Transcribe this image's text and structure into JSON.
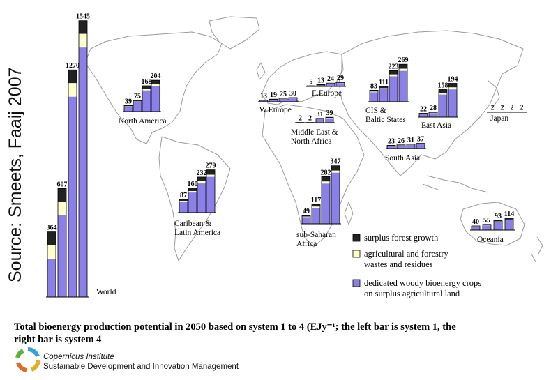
{
  "source_label": "Source: Smeets, Faaij 2007",
  "caption": {
    "line1": "Total bioenergy production potential in 2050 based on system 1 to 4 (EJy⁻¹; the left bar is system 1, the",
    "line2": "right bar is system 4"
  },
  "logo": {
    "institute": "Copernicus Institute",
    "department": "Sustainable Development and Innovation Management"
  },
  "colors": {
    "surplus_forest": "#222222",
    "residues": "#ffffcc",
    "dedicated_crops": "#8a80e8",
    "map_line": "#9a9a9a"
  },
  "chart_data": {
    "type": "bar",
    "unit": "EJ/yr",
    "series_order": [
      "System 1",
      "System 2",
      "System 3",
      "System 4"
    ],
    "legend": [
      {
        "key": "surplus_forest",
        "label": "surplus forest growth"
      },
      {
        "key": "residues",
        "label": "agricultural and forestry wastes and residues"
      },
      {
        "key": "dedicated_crops",
        "label": "dedicated woody bioenergy crops on surplus agricultural land"
      }
    ],
    "regions": [
      {
        "name": "World",
        "label_lines": [
          "World"
        ],
        "values": [
          364,
          607,
          1270,
          1545
        ],
        "components": {
          "surplus_forest": [
            74,
            74,
            74,
            74
          ],
          "residues": [
            76,
            76,
            76,
            76
          ],
          "dedicated_crops": [
            214,
            457,
            1120,
            1395
          ]
        }
      },
      {
        "name": "North America",
        "label_lines": [
          "North America"
        ],
        "values": [
          39,
          75,
          168,
          204
        ]
      },
      {
        "name": "Caribean & Latin America",
        "label_lines": [
          "Caribean &",
          "Latin America"
        ],
        "values": [
          87,
          160,
          232,
          279
        ]
      },
      {
        "name": "W.Europe",
        "label_lines": [
          "W.Europe"
        ],
        "values": [
          13,
          19,
          25,
          30
        ]
      },
      {
        "name": "E.Europe",
        "label_lines": [
          "E.Europe"
        ],
        "values": [
          5,
          13,
          24,
          29
        ]
      },
      {
        "name": "CIS & Baltic States",
        "label_lines": [
          "CIS &",
          "Baltic States"
        ],
        "values": [
          83,
          111,
          223,
          269
        ]
      },
      {
        "name": "Middle East & North Africa",
        "label_lines": [
          "Middle East &",
          "North Africa"
        ],
        "values": [
          2,
          2,
          31,
          39
        ]
      },
      {
        "name": "sub-Saharan Africa",
        "label_lines": [
          "sub-Saharan",
          "Africa"
        ],
        "values": [
          49,
          117,
          282,
          347
        ]
      },
      {
        "name": "East Asia",
        "label_lines": [
          "East Asia"
        ],
        "values": [
          22,
          28,
          158,
          194
        ]
      },
      {
        "name": "South Asia",
        "label_lines": [
          "South Asia"
        ],
        "values": [
          23,
          26,
          31,
          37
        ]
      },
      {
        "name": "Japan",
        "label_lines": [
          "Japan"
        ],
        "values": [
          2,
          2,
          2,
          2
        ]
      },
      {
        "name": "Oceania",
        "label_lines": [
          "Oceania"
        ],
        "values": [
          40,
          55,
          93,
          114
        ]
      }
    ]
  }
}
